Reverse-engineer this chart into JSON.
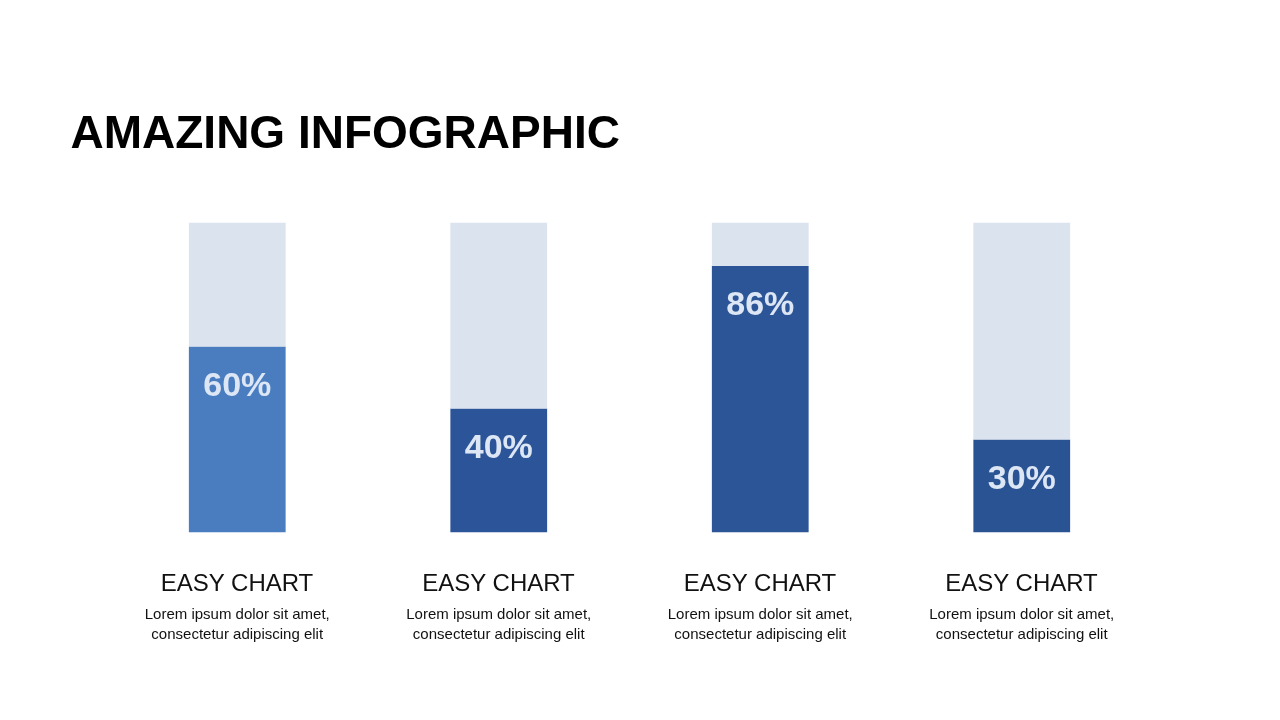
{
  "chart_data": {
    "type": "bar",
    "title": "AMAZING INFOGRAPHIC",
    "categories": [
      "EASY CHART",
      "EASY CHART",
      "EASY CHART",
      "EASY CHART"
    ],
    "stacked": true,
    "ylim": [
      0,
      100
    ],
    "tick_labels": "x",
    "series": [
      {
        "colors": [
          "#4a7dc0",
          "#2c5599",
          "#2c5597",
          "#2a5394"
        ],
        "values": [
          60,
          40,
          86,
          30
        ],
        "value_labels": [
          "60%",
          "40%",
          "86%",
          "30%"
        ]
      },
      {
        "color": "#dbe3ef",
        "values": [
          40,
          60,
          14,
          70
        ]
      }
    ],
    "annotations": [
      "Lorem ipsum dolor sit amet,\nconsectetur adipiscing elit",
      "Lorem ipsum dolor sit amet,\nconsectetur adipiscing elit",
      "Lorem ipsum dolor sit amet,\nconsectetur adipiscing elit",
      "Lorem ipsum dolor sit amet,\nconsectetur adipiscing elit"
    ]
  }
}
